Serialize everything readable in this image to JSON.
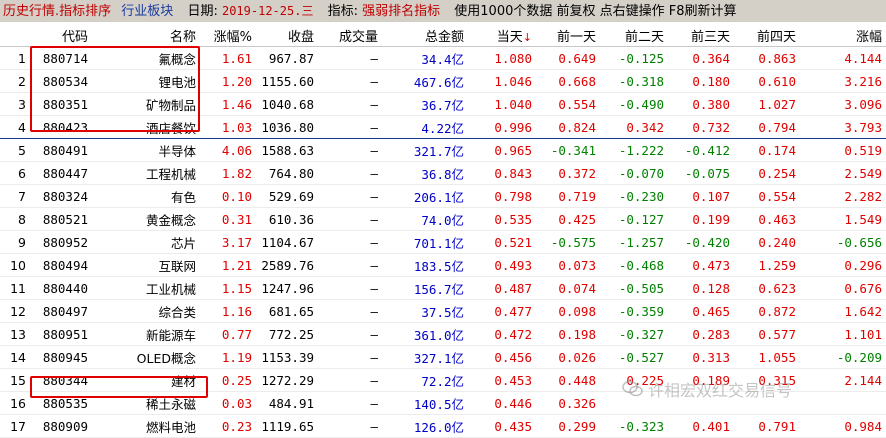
{
  "titlebar": {
    "history_title": "历史行情.指标排序",
    "sector": "行业板块",
    "date_label": "日期:",
    "date": "2019-12-25.三",
    "indicator_label": "指标:",
    "indicator": "强弱排名指标",
    "info": "使用1000个数据 前复权 点右键操作 F8刷新计算"
  },
  "columns": [
    "",
    "代码",
    "名称",
    "涨幅%",
    "收盘",
    "成交量",
    "总金额",
    "当天",
    "前一天",
    "前二天",
    "前三天",
    "前四天",
    "涨幅"
  ],
  "sort_arrow": "↓",
  "rows": [
    {
      "idx": "1",
      "code": "880714",
      "name": "氟概念",
      "pct": "1.61",
      "close": "967.87",
      "vol": "—",
      "amount": "34.4亿",
      "d0": "1.080",
      "d1": "0.649",
      "d2": "-0.125",
      "d3": "0.364",
      "d4": "0.863",
      "chg": "4.144"
    },
    {
      "idx": "2",
      "code": "880534",
      "name": "锂电池",
      "pct": "1.20",
      "close": "1155.60",
      "vol": "—",
      "amount": "467.6亿",
      "d0": "1.046",
      "d1": "0.668",
      "d2": "-0.318",
      "d3": "0.180",
      "d4": "0.610",
      "chg": "3.216"
    },
    {
      "idx": "3",
      "code": "880351",
      "name": "矿物制品",
      "pct": "1.46",
      "close": "1040.68",
      "vol": "—",
      "amount": "36.7亿",
      "d0": "1.040",
      "d1": "0.554",
      "d2": "-0.490",
      "d3": "0.380",
      "d4": "1.027",
      "chg": "3.096"
    },
    {
      "idx": "4",
      "code": "880423",
      "name": "酒店餐饮",
      "pct": "1.03",
      "close": "1036.80",
      "vol": "—",
      "amount": "4.22亿",
      "d0": "0.996",
      "d1": "0.824",
      "d2": "0.342",
      "d3": "0.732",
      "d4": "0.794",
      "chg": "3.793"
    },
    {
      "idx": "5",
      "code": "880491",
      "name": "半导体",
      "pct": "4.06",
      "close": "1588.63",
      "vol": "—",
      "amount": "321.7亿",
      "d0": "0.965",
      "d1": "-0.341",
      "d2": "-1.222",
      "d3": "-0.412",
      "d4": "0.174",
      "chg": "0.519"
    },
    {
      "idx": "6",
      "code": "880447",
      "name": "工程机械",
      "pct": "1.82",
      "close": "764.80",
      "vol": "—",
      "amount": "36.8亿",
      "d0": "0.843",
      "d1": "0.372",
      "d2": "-0.070",
      "d3": "-0.075",
      "d4": "0.254",
      "chg": "2.549"
    },
    {
      "idx": "7",
      "code": "880324",
      "name": "有色",
      "pct": "0.10",
      "close": "529.69",
      "vol": "—",
      "amount": "206.1亿",
      "d0": "0.798",
      "d1": "0.719",
      "d2": "-0.230",
      "d3": "0.107",
      "d4": "0.554",
      "chg": "2.282"
    },
    {
      "idx": "8",
      "code": "880521",
      "name": "黄金概念",
      "pct": "0.31",
      "close": "610.36",
      "vol": "—",
      "amount": "74.0亿",
      "d0": "0.535",
      "d1": "0.425",
      "d2": "-0.127",
      "d3": "0.199",
      "d4": "0.463",
      "chg": "1.549"
    },
    {
      "idx": "9",
      "code": "880952",
      "name": "芯片",
      "pct": "3.17",
      "close": "1104.67",
      "vol": "—",
      "amount": "701.1亿",
      "d0": "0.521",
      "d1": "-0.575",
      "d2": "-1.257",
      "d3": "-0.420",
      "d4": "0.240",
      "chg": "-0.656"
    },
    {
      "idx": "10",
      "code": "880494",
      "name": "互联网",
      "pct": "1.21",
      "close": "2589.76",
      "vol": "—",
      "amount": "183.5亿",
      "d0": "0.493",
      "d1": "0.073",
      "d2": "-0.468",
      "d3": "0.473",
      "d4": "1.259",
      "chg": "0.296"
    },
    {
      "idx": "11",
      "code": "880440",
      "name": "工业机械",
      "pct": "1.15",
      "close": "1247.96",
      "vol": "—",
      "amount": "156.7亿",
      "d0": "0.487",
      "d1": "0.074",
      "d2": "-0.505",
      "d3": "0.128",
      "d4": "0.623",
      "chg": "0.676"
    },
    {
      "idx": "12",
      "code": "880497",
      "name": "综合类",
      "pct": "1.16",
      "close": "681.65",
      "vol": "—",
      "amount": "37.5亿",
      "d0": "0.477",
      "d1": "0.098",
      "d2": "-0.359",
      "d3": "0.465",
      "d4": "0.872",
      "chg": "1.642"
    },
    {
      "idx": "13",
      "code": "880951",
      "name": "新能源车",
      "pct": "0.77",
      "close": "772.25",
      "vol": "—",
      "amount": "361.0亿",
      "d0": "0.472",
      "d1": "0.198",
      "d2": "-0.327",
      "d3": "0.283",
      "d4": "0.577",
      "chg": "1.101"
    },
    {
      "idx": "14",
      "code": "880945",
      "name": "OLED概念",
      "pct": "1.19",
      "close": "1153.39",
      "vol": "—",
      "amount": "327.1亿",
      "d0": "0.456",
      "d1": "0.026",
      "d2": "-0.527",
      "d3": "0.313",
      "d4": "1.055",
      "chg": "-0.209"
    },
    {
      "idx": "15",
      "code": "880344",
      "name": "建材",
      "pct": "0.25",
      "close": "1272.29",
      "vol": "—",
      "amount": "72.2亿",
      "d0": "0.453",
      "d1": "0.448",
      "d2": "0.225",
      "d3": "0.189",
      "d4": "0.315",
      "chg": "2.144"
    },
    {
      "idx": "16",
      "code": "880535",
      "name": "稀土永磁",
      "pct": "0.03",
      "close": "484.91",
      "vol": "—",
      "amount": "140.5亿",
      "d0": "0.446",
      "d1": "0.326",
      "d2": "",
      "d3": "",
      "d4": "",
      "chg": ""
    },
    {
      "idx": "17",
      "code": "880909",
      "name": "燃料电池",
      "pct": "0.23",
      "close": "1119.65",
      "vol": "—",
      "amount": "126.0亿",
      "d0": "0.435",
      "d1": "0.299",
      "d2": "-0.323",
      "d3": "0.401",
      "d4": "0.791",
      "chg": "0.984"
    }
  ],
  "watermark": "许相宏双红交易信号",
  "colors": {
    "up": "#e00000",
    "down": "#008000",
    "amount": "#0000c8",
    "highlight": "#e00000"
  }
}
